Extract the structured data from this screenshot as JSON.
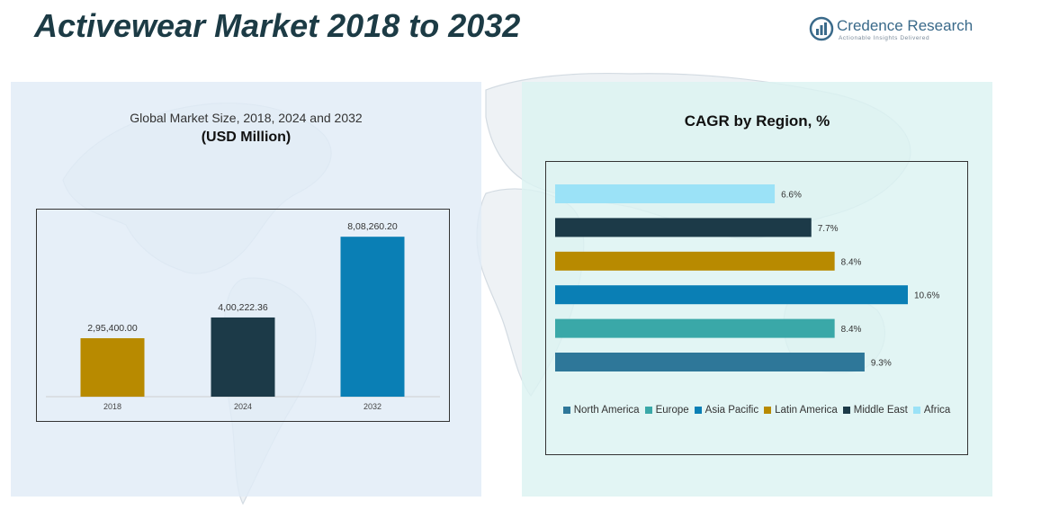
{
  "header": {
    "title": "Activewear Market 2018 to 2032",
    "brand_name": "Credence Research",
    "brand_tagline": "Actionable Insights Delivered"
  },
  "colors": {
    "brand": "#3a6a8a",
    "title": "#1c3b45"
  },
  "left_panel": {
    "subtitle": "Global Market Size, 2018, 2024 and 2032",
    "unit": "(USD Million)"
  },
  "right_panel": {
    "title": "CAGR by Region, %"
  },
  "chart_data": [
    {
      "type": "bar",
      "categories": [
        "2018",
        "2024",
        "2032"
      ],
      "values": [
        295400.0,
        400222.36,
        808260.2
      ],
      "value_labels": [
        "2,95,400.00",
        "4,00,222.36",
        "8,08,260.20"
      ],
      "colors": [
        "#b88a00",
        "#1c3a48",
        "#0a7fb5"
      ],
      "title": "Global Market Size, 2018, 2024 and 2032",
      "ylabel": "(USD Million)",
      "xlabel": "",
      "ylim": [
        0,
        900000
      ],
      "grid": false,
      "legend": false
    },
    {
      "type": "bar",
      "orientation": "horizontal",
      "title": "CAGR by Region, %",
      "categories": [
        "North America",
        "Europe",
        "Asia Pacific",
        "Latin America",
        "Middle East",
        "Africa"
      ],
      "values": [
        9.3,
        8.4,
        10.6,
        8.4,
        7.7,
        6.6
      ],
      "value_labels": [
        "9.3%",
        "8.4%",
        "10.6%",
        "8.4%",
        "7.7%",
        "6.6%"
      ],
      "colors": [
        "#2e7799",
        "#3aa8a8",
        "#0a7fb5",
        "#b88a00",
        "#1c3a48",
        "#9be2f7"
      ],
      "xlim": [
        0,
        11.5
      ],
      "grid": false,
      "legend": "bottom"
    }
  ]
}
